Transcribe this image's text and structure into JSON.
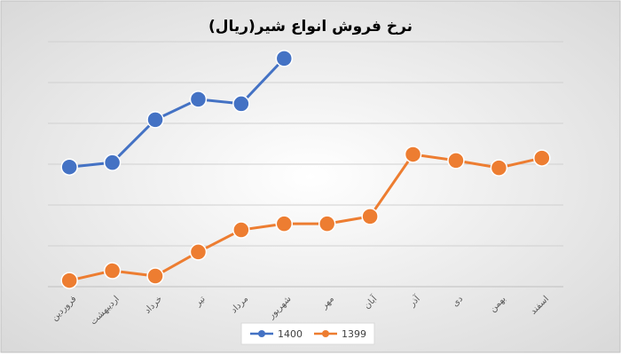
{
  "chart_data": {
    "type": "line",
    "title": "نرخ فروش انواع شیر(ریال)",
    "categories": [
      "فروردین",
      "اردیبهشت",
      "خرداد",
      "تیر",
      "مرداد",
      "شهریور",
      "مهر",
      "آبان",
      "آذر",
      "دی",
      "بهمن",
      "اسفند"
    ],
    "series": [
      {
        "name": "1400",
        "color": "#4472c4",
        "values": [
          2.93,
          3.04,
          4.09,
          4.59,
          4.48,
          5.59,
          null,
          null,
          null,
          null,
          null,
          null
        ]
      },
      {
        "name": "1399",
        "color": "#ed7d31",
        "values": [
          0.15,
          0.39,
          0.26,
          0.85,
          1.39,
          1.54,
          1.54,
          1.72,
          3.24,
          3.09,
          2.91,
          3.15
        ]
      }
    ],
    "ylim": [
      0,
      6
    ],
    "grid": true
  }
}
